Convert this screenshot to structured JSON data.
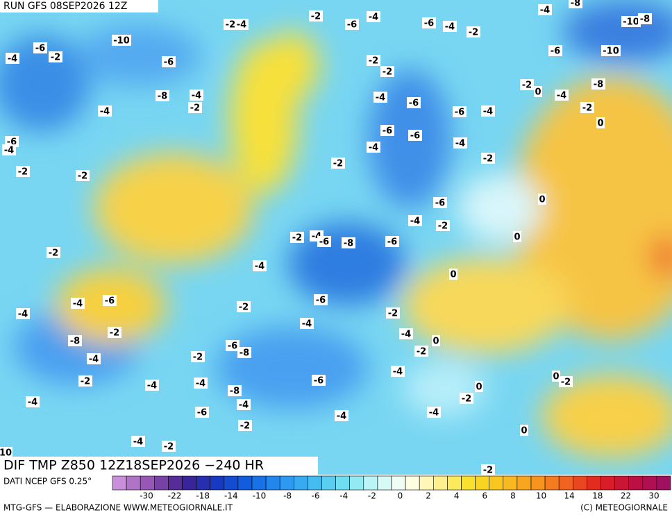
{
  "header": {
    "run": "RUN GFS 08SEP2026 12Z"
  },
  "map": {
    "title": "DIF TMP Z850 12Z18SEP2026 −240 HR",
    "contour_labels": [
      -4,
      -6,
      -2,
      -10,
      -6,
      -8,
      -4,
      -2,
      -4,
      -6,
      -4,
      -2,
      -2,
      -2,
      -4,
      -2,
      -4,
      -6,
      -6,
      -4,
      -2,
      -4,
      -8,
      -10,
      -8,
      -6,
      -10,
      -2,
      -2,
      -4,
      -6,
      -6,
      -4,
      -2,
      0,
      -4,
      -8,
      -2,
      0,
      -6,
      -6,
      -4,
      -4,
      -2,
      -2,
      -6,
      0,
      -4,
      -2,
      0,
      -2,
      -4,
      -6,
      -8,
      -6,
      -2,
      -4,
      0,
      -4,
      -6,
      -4,
      -2,
      -6,
      -4,
      -2,
      -8,
      -2,
      -4,
      0,
      -6,
      -8,
      -2,
      -4,
      -2,
      -4,
      -2,
      -4,
      -4,
      -6,
      0,
      0,
      -2,
      -8,
      -4,
      -4,
      -2,
      -6,
      -4,
      -4,
      -2,
      0,
      -4,
      -2,
      -2,
      10
    ]
  },
  "legend": {
    "source": "DATI NCEP GFS 0.25°",
    "ticks": [
      -30,
      -22,
      -18,
      -14,
      -10,
      -8,
      -6,
      -4,
      -2,
      0,
      2,
      4,
      6,
      8,
      10,
      14,
      18,
      22,
      30
    ]
  },
  "footer": {
    "left": "MTG-GFS — ELABORAZIONE WWW.METEOGIORNALE.IT",
    "right": "(C) METEOGIORNALE"
  }
}
